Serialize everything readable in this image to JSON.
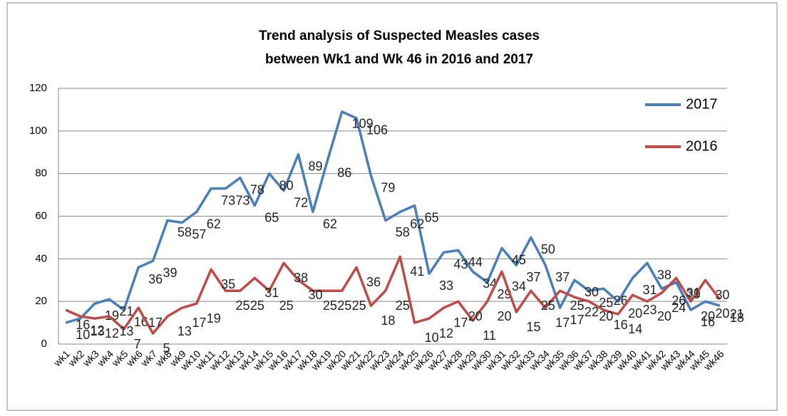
{
  "chart_data": {
    "type": "line",
    "title": [
      "Trend analysis of Suspected Measles cases",
      "between Wk1 and Wk 46 in 2016 and 2017"
    ],
    "categories": [
      "wk1",
      "wk2",
      "wk3",
      "wk4",
      "wk5",
      "wk6",
      "wk7",
      "wk8",
      "wk9",
      "wk10",
      "wk11",
      "wk12",
      "wk13",
      "wk14",
      "wk15",
      "wk16",
      "wk17",
      "wk18",
      "wk19",
      "wk20",
      "wk21",
      "wk22",
      "wk23",
      "wk24",
      "wk25",
      "wk26",
      "wk27",
      "wk28",
      "wk29",
      "wk30",
      "wk31",
      "wk32",
      "wk33",
      "wk34",
      "wk35",
      "wk36",
      "wk37",
      "wk38",
      "wk39",
      "wk40",
      "wk41",
      "wk42",
      "wk43",
      "wk44",
      "wk45",
      "wk46"
    ],
    "series": [
      {
        "name": "2017",
        "color": "#4a7ebb",
        "values": [
          10,
          12,
          19,
          21,
          16,
          36,
          39,
          58,
          57,
          62,
          73,
          73,
          78,
          65,
          80,
          72,
          89,
          62,
          86,
          109,
          106,
          79,
          58,
          62,
          65,
          33,
          43,
          44,
          34,
          29,
          45,
          37,
          50,
          37,
          17,
          30,
          25,
          26,
          20,
          31,
          38,
          26,
          29,
          16,
          20,
          18
        ]
      },
      {
        "name": "2016",
        "color": "#be4b48",
        "values": [
          16,
          13,
          12,
          13,
          7,
          17,
          5,
          13,
          17,
          19,
          35,
          25,
          25,
          31,
          25,
          38,
          30,
          25,
          25,
          25,
          36,
          18,
          25,
          41,
          10,
          12,
          17,
          20,
          11,
          20,
          34,
          15,
          25,
          17,
          25,
          22,
          20,
          16,
          14,
          23,
          20,
          24,
          31,
          20,
          30,
          21
        ]
      }
    ],
    "ylim": [
      0,
      120
    ],
    "yticks": [
      0,
      20,
      40,
      60,
      80,
      100,
      120
    ],
    "grid": true,
    "legend": "right"
  }
}
